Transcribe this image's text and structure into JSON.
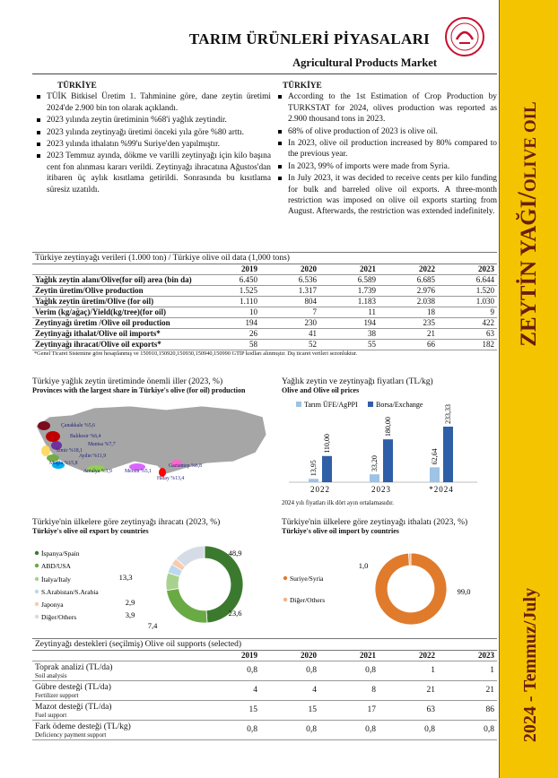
{
  "header": {
    "title": "TARIM ÜRÜNLERİ PİYASALARI",
    "subtitle": "Agricultural Products Market"
  },
  "sidebar": {
    "product_tr": "ZEYTİN YAĞI",
    "separator": "/",
    "product_en": "OLIVE OIL",
    "period": "2024 - Temmuz/July"
  },
  "summary": {
    "tr": {
      "heading": "TÜRKİYE",
      "bullets": [
        "TÜİK Bitkisel Üretim 1. Tahminine göre, dane zeytin üretimi 2024'de 2.900 bin ton olarak açıklandı.",
        "2023 yılında zeytin üretiminin %68'i yağlık zeytindir.",
        "2023 yılında zeytinyağı üretimi önceki yıla göre %80 arttı.",
        "2023 yılında ithalatın %99'u Suriye'den yapılmıştır.",
        "2023 Temmuz ayında, dökme ve varilli zeytinyağı için kilo başına cent fon alınması kararı verildi. Zeytinyağı ihracatına Ağustos'dan itibaren üç aylık kısıtlama getirildi. Sonrasında bu kısıtlama süresiz uzatıldı."
      ]
    },
    "en": {
      "heading": "TÜRKİYE",
      "bullets": [
        "According to the 1st Estimation of Crop Production by TURKSTAT for 2024, olives production was reported as 2.900 thousand tons in 2023.",
        "68% of olive production of 2023 is olive oil.",
        "In 2023, olive oil production increased by 80% compared to the previous year.",
        "In 2023, 99% of imports were made from Syria.",
        "In July 2023, it was decided to receive cents per kilo funding for bulk and barreled olive oil exports. A three-month restriction was imposed on olive oil exports starting from August. Afterwards, the restriction was extended indefinitely."
      ]
    }
  },
  "data_table": {
    "title": "Türkiye zeytinyağı verileri (1.000 ton) / Türkiye olive oil data (1,000 tons)",
    "columns": [
      "2019",
      "2020",
      "2021",
      "2022",
      "2023"
    ],
    "rows": [
      {
        "label": "Yağlık zeytin alanı/Olive(for oil) area (bin da)",
        "cells": [
          "6.450",
          "6.536",
          "6.589",
          "6.685",
          "6.644"
        ]
      },
      {
        "label": "Zeytin üretim/Olive production",
        "cells": [
          "1.525",
          "1.317",
          "1.739",
          "2.976",
          "1.520"
        ]
      },
      {
        "label": "Yağlık zeytin üretim/Olive (for oil)",
        "cells": [
          "1.110",
          "804",
          "1.183",
          "2.038",
          "1.030"
        ]
      },
      {
        "label": "Verim (kg/ağaç)/Yield(kg/tree)(for oil)",
        "cells": [
          "10",
          "7",
          "11",
          "18",
          "9"
        ]
      },
      {
        "label": "Zeytinyağı üretim /Olive oil production",
        "cells": [
          "194",
          "230",
          "194",
          "235",
          "422"
        ]
      },
      {
        "label": "Zeytinyağı ithalat/Olive oil imports*",
        "cells": [
          "26",
          "41",
          "38",
          "21",
          "63"
        ]
      },
      {
        "label": "Zeytinyağı ihracat/Olive oil exports*",
        "cells": [
          "58",
          "52",
          "55",
          "66",
          "182"
        ]
      }
    ],
    "footnote": "*Genel Ticaret Sistemine göre hesaplanmış ve 150910,150920,150930,150940,150990 GTİP kodları alınmıştır. Dış ticaret verileri sezonluktur."
  },
  "map": {
    "title": "Türkiye yağlık zeytin üretiminde önemli iller (2023, %)",
    "subtitle": "Provinces with the largest share in Türkiye's olive (for oil) production",
    "labels": [
      "Çanakkale %5,6",
      "Balıkesir %6,4",
      "Manisa %7,7",
      "İzmir %18,1",
      "Aydın %11,9",
      "Muğla %15,8",
      "Antalya %1,9",
      "Mersin %5,1",
      "Gaziantep %6,8",
      "Hatay %13,4"
    ]
  },
  "price_chart": {
    "type": "bar",
    "title": "Yağlık zeytin ve zeytinyağı fiyatları (TL/kg)",
    "subtitle": "Olive and Olive oil prices",
    "categories": [
      "2022",
      "2023",
      "*2024"
    ],
    "series": [
      {
        "name": "Tarım ÜFE/AgPPI",
        "color": "#9dc3e6",
        "values": [
          13.95,
          33.2,
          62.64
        ],
        "value_labels": [
          "13,95",
          "33,20",
          "62,64"
        ]
      },
      {
        "name": "Borsa/Exchange",
        "color": "#2f5fa7",
        "values": [
          110,
          180,
          233.33
        ],
        "value_labels": [
          "110,00",
          "180,00",
          "233,33"
        ]
      }
    ],
    "note": "2024 yılı fiyatları ilk dört ayın ortalamasıdır."
  },
  "export_chart": {
    "type": "donut",
    "title": "Türkiye'nin ülkelere göre zeytinyağı ihracatı (2023, %)",
    "subtitle": "Türkiye's olive oil export by countries",
    "categories": [
      "İspanya/Spain",
      "ABD/USA",
      "İtalya/Italy",
      "S.Arabistan/S.Arabia",
      "Japonya",
      "Diğer/Others"
    ],
    "values": [
      48.9,
      23.6,
      7.4,
      3.9,
      2.9,
      13.3
    ],
    "value_labels": [
      "48,9",
      "23,6",
      "7,4",
      "3,9",
      "2,9",
      "13,3"
    ],
    "colors": [
      "#3b7a2e",
      "#6aaa45",
      "#a9d18e",
      "#bdd7ee",
      "#f8cbad",
      "#d6dce5"
    ]
  },
  "import_chart": {
    "type": "donut",
    "title": "Türkiye'nin ülkelere göre zeytinyağı ithalatı (2023, %)",
    "subtitle": "Türkiye's olive oil import by countries",
    "categories": [
      "Suriye/Syria",
      "Diğer/Others"
    ],
    "values": [
      99,
      1
    ],
    "value_labels": [
      "99,0",
      "1,0"
    ],
    "colors": [
      "#e07b2c",
      "#f4b183"
    ]
  },
  "support_table": {
    "title": "Zeytinyağı destekleri (seçilmiş)  Olive oil  supports (selected)",
    "columns": [
      "2019",
      "2020",
      "2021",
      "2022",
      "2023"
    ],
    "rows": [
      {
        "label": "Toprak analizi (TL/da)",
        "label_en": "Soil analysis",
        "cells": [
          "0,8",
          "0,8",
          "0,8",
          "1",
          "1"
        ]
      },
      {
        "label": "Gübre desteği (TL/da)",
        "label_en": "Fertilizer support",
        "cells": [
          "4",
          "4",
          "8",
          "21",
          "21"
        ]
      },
      {
        "label": "Mazot desteği (TL/da)",
        "label_en": "Fuel support",
        "cells": [
          "15",
          "15",
          "17",
          "63",
          "86"
        ]
      },
      {
        "label": "Fark ödeme desteği (TL/kg)",
        "label_en": "Deficiency payment support",
        "cells": [
          "0,8",
          "0,8",
          "0,8",
          "0,8",
          "0,8"
        ]
      }
    ]
  }
}
